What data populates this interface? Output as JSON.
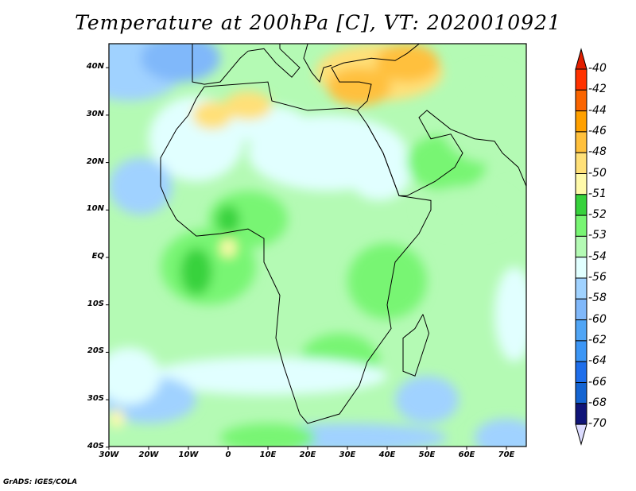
{
  "title": "Temperature at 200hPa [C], VT: 2020010921",
  "lat_labels": [
    "40N",
    "30N",
    "20N",
    "10N",
    "EQ",
    "10S",
    "20S",
    "30S",
    "40S"
  ],
  "lat_values": [
    40,
    30,
    20,
    10,
    0,
    -10,
    -20,
    -30,
    -40
  ],
  "lon_labels": [
    "30W",
    "20W",
    "10W",
    "0",
    "10E",
    "20E",
    "30E",
    "40E",
    "50E",
    "60E",
    "70E"
  ],
  "lon_values": [
    -30,
    -20,
    -10,
    0,
    10,
    20,
    30,
    40,
    50,
    60,
    70
  ],
  "colorbar": {
    "labels": [
      "-40",
      "-42",
      "-44",
      "-46",
      "-48",
      "-50",
      "-51",
      "-52",
      "-53",
      "-54",
      "-56",
      "-58",
      "-60",
      "-62",
      "-64",
      "-66",
      "-68",
      "-70"
    ],
    "colors": [
      "#ff3200",
      "#fa6400",
      "#ffa000",
      "#ffc03c",
      "#ffe078",
      "#fffaaa",
      "#37d23c",
      "#78f573",
      "#b4fab4",
      "#e1ffff",
      "#a0d2ff",
      "#80b8fa",
      "#50a5f5",
      "#3c96f5",
      "#1e6eeb",
      "#1464d2",
      "#0f1478"
    ],
    "top_arrow_color": "#e11e00",
    "bottom_arrow_color": "#dcdcff"
  },
  "credit": "GrADS: IGES/COLA"
}
